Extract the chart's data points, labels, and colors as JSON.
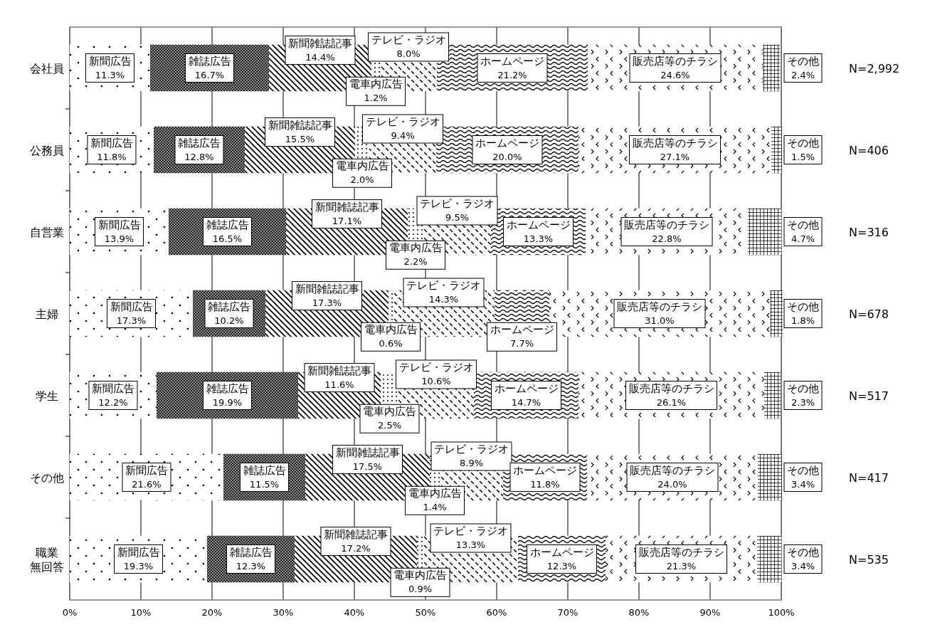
{
  "chart_data": {
    "type": "bar",
    "orientation": "horizontal",
    "stacked": true,
    "categories": [
      "会社員",
      "公務員",
      "自営業",
      "主婦",
      "学生",
      "その他",
      "職業無回答"
    ],
    "series": [
      {
        "name": "新聞広告",
        "color": "#ffffff",
        "values": [
          11.3,
          11.8,
          13.9,
          17.3,
          12.2,
          21.6,
          19.3
        ],
        "value_labels": [
          "11.3%",
          "11.8%",
          "13.9%",
          "17.3%",
          "12.2%",
          "21.6%",
          "19.3%"
        ]
      },
      {
        "name": "雑誌広告",
        "color": "#8c8c8c",
        "values": [
          16.7,
          12.8,
          16.5,
          10.2,
          19.9,
          11.5,
          12.3
        ],
        "value_labels": [
          "16.7%",
          "12.8%",
          "16.5%",
          "10.2%",
          "19.9%",
          "11.5%",
          "12.3%"
        ]
      },
      {
        "name": "新聞雑誌記事",
        "color": "#ffffff",
        "values": [
          14.4,
          15.5,
          17.1,
          17.3,
          11.6,
          17.5,
          17.2
        ],
        "value_labels": [
          "14.4%",
          "15.5%",
          "17.1%",
          "17.3%",
          "11.6%",
          "17.5%",
          "17.2%"
        ]
      },
      {
        "name": "電車内広告",
        "color": "#ffffff",
        "values": [
          1.2,
          2.0,
          2.2,
          0.6,
          2.5,
          1.4,
          0.9
        ],
        "value_labels": [
          "1.2%",
          "2.0%",
          "2.2%",
          "0.6%",
          "2.5%",
          "1.4%",
          "0.9%"
        ]
      },
      {
        "name": "テレビ・ラジオ",
        "color": "#ffffff",
        "values": [
          8.0,
          9.4,
          9.5,
          14.3,
          10.6,
          8.9,
          13.3
        ],
        "value_labels": [
          "8.0%",
          "9.4%",
          "9.5%",
          "14.3%",
          "10.6%",
          "8.9%",
          "13.3%"
        ]
      },
      {
        "name": "ホームページ",
        "color": "#ffffff",
        "values": [
          21.2,
          20.0,
          13.3,
          7.7,
          14.7,
          11.8,
          12.3
        ],
        "value_labels": [
          "21.2%",
          "20.0%",
          "13.3%",
          "7.7%",
          "14.7%",
          "11.8%",
          "12.3%"
        ]
      },
      {
        "name": "販売店等のチラシ",
        "color": "#ffffff",
        "values": [
          24.6,
          27.1,
          22.8,
          31.0,
          26.1,
          24.0,
          21.3
        ],
        "value_labels": [
          "24.6%",
          "27.1%",
          "22.8%",
          "31.0%",
          "26.1%",
          "24.0%",
          "21.3%"
        ]
      },
      {
        "name": "その他",
        "color": "#ffffff",
        "values": [
          2.4,
          1.5,
          4.7,
          1.8,
          2.3,
          3.4,
          3.4
        ],
        "value_labels": [
          "2.4%",
          "1.5%",
          "4.7%",
          "1.8%",
          "2.3%",
          "3.4%",
          "3.4%"
        ]
      }
    ],
    "xlim": [
      0,
      100
    ],
    "xticks": [
      {
        "value": 0,
        "label": "0%"
      },
      {
        "value": 10,
        "label": "10%"
      },
      {
        "value": 20,
        "label": "20%"
      },
      {
        "value": 30,
        "label": "30%"
      },
      {
        "value": 40,
        "label": "40%"
      },
      {
        "value": 50,
        "label": "50%"
      },
      {
        "value": 60,
        "label": "60%"
      },
      {
        "value": 70,
        "label": "70%"
      },
      {
        "value": 80,
        "label": "80%"
      },
      {
        "value": 90,
        "label": "90%"
      },
      {
        "value": 100,
        "label": "100%"
      }
    ],
    "grid": "x",
    "annotations": [
      "N=2,992",
      "N=406",
      "N=316",
      "N=678",
      "N=517",
      "N=417",
      "N=535"
    ]
  }
}
